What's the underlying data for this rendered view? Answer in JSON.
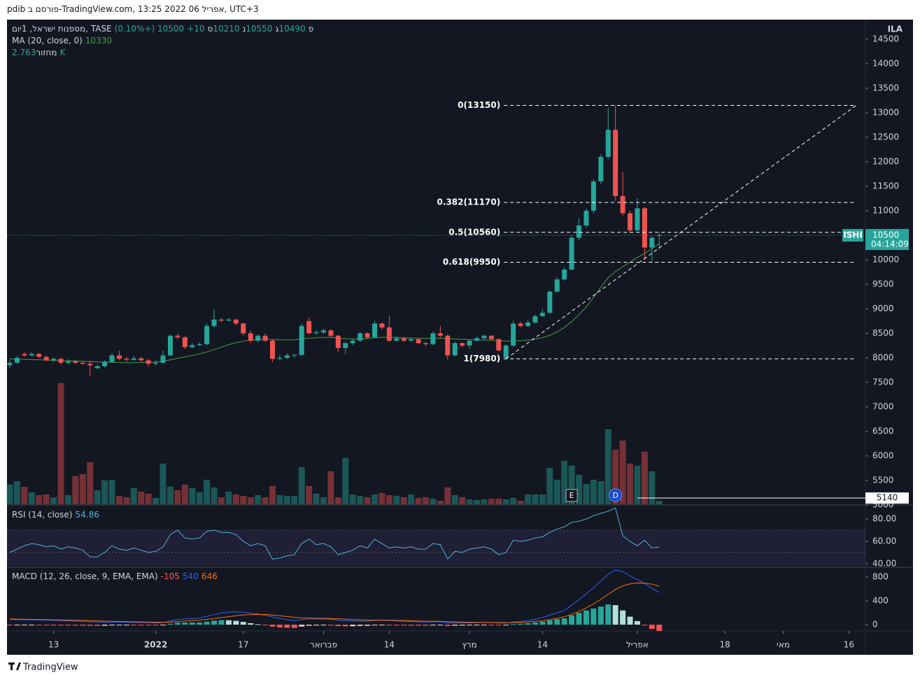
{
  "header": {
    "caption": "pdib פורסם ב-TradingView.com, 13:25 2022 אפריל 06, UTC+3"
  },
  "footer": {
    "brand": "TradingView"
  },
  "chart_data": {
    "type": "candlestick",
    "symbol_title": "מספנות ישראל, 1יום, TASE",
    "currency": "ILA",
    "ohlc_letters": [
      "פ",
      "ג",
      "נ",
      "ס"
    ],
    "change": "+10 (+0.10%)",
    "up_color": "#26a69a",
    "down_color": "#ef5350",
    "candles": [
      [
        7850,
        7960,
        7800,
        7900
      ],
      [
        7900,
        8040,
        7880,
        8000
      ],
      [
        8080,
        8120,
        8020,
        8050
      ],
      [
        8050,
        8120,
        8030,
        8080
      ],
      [
        8080,
        8100,
        7990,
        8020
      ],
      [
        8020,
        8050,
        7920,
        7950
      ],
      [
        7950,
        8010,
        7920,
        7980
      ],
      [
        7980,
        8000,
        7860,
        7900
      ],
      [
        7900,
        7970,
        7880,
        7930
      ],
      [
        7930,
        7950,
        7870,
        7900
      ],
      [
        7900,
        7920,
        7850,
        7880
      ],
      [
        7880,
        7940,
        7620,
        7850
      ],
      [
        7790,
        7860,
        7770,
        7830
      ],
      [
        7830,
        7950,
        7800,
        7920
      ],
      [
        7920,
        8100,
        7900,
        8050
      ],
      [
        8050,
        8150,
        7950,
        7980
      ],
      [
        7980,
        8020,
        7920,
        7960
      ],
      [
        7960,
        8040,
        7940,
        7990
      ],
      [
        7990,
        8020,
        7920,
        7950
      ],
      [
        7950,
        7980,
        7820,
        7880
      ],
      [
        7880,
        7960,
        7840,
        7900
      ],
      [
        7900,
        8150,
        7880,
        8050
      ],
      [
        8050,
        8480,
        8040,
        8450
      ],
      [
        8450,
        8490,
        8380,
        8420
      ],
      [
        8420,
        8440,
        8180,
        8220
      ],
      [
        8220,
        8300,
        8200,
        8260
      ],
      [
        8260,
        8320,
        8240,
        8280
      ],
      [
        8280,
        8700,
        8260,
        8650
      ],
      [
        8650,
        9000,
        8620,
        8780
      ],
      [
        8780,
        8820,
        8720,
        8760
      ],
      [
        8760,
        8820,
        8740,
        8780
      ],
      [
        8780,
        8800,
        8660,
        8700
      ],
      [
        8700,
        8720,
        8460,
        8500
      ],
      [
        8500,
        8560,
        8300,
        8350
      ],
      [
        8350,
        8480,
        8320,
        8450
      ],
      [
        8450,
        8500,
        8320,
        8350
      ],
      [
        8350,
        8380,
        7920,
        7980
      ],
      [
        7980,
        8060,
        7960,
        8000
      ],
      [
        8000,
        8090,
        7970,
        8050
      ],
      [
        8050,
        8080,
        8000,
        8060
      ],
      [
        8060,
        8700,
        8040,
        8650
      ],
      [
        8750,
        8820,
        8480,
        8500
      ],
      [
        8500,
        8560,
        8470,
        8520
      ],
      [
        8520,
        8600,
        8480,
        8560
      ],
      [
        8560,
        8580,
        8420,
        8450
      ],
      [
        8450,
        8470,
        8120,
        8200
      ],
      [
        8200,
        8330,
        8080,
        8300
      ],
      [
        8300,
        8380,
        8260,
        8350
      ],
      [
        8350,
        8530,
        8330,
        8500
      ],
      [
        8500,
        8520,
        8380,
        8420
      ],
      [
        8420,
        8760,
        8400,
        8700
      ],
      [
        8700,
        8720,
        8580,
        8620
      ],
      [
        8620,
        8860,
        8320,
        8350
      ],
      [
        8350,
        8440,
        8330,
        8400
      ],
      [
        8400,
        8420,
        8320,
        8350
      ],
      [
        8350,
        8400,
        8330,
        8380
      ],
      [
        8380,
        8400,
        8270,
        8300
      ],
      [
        8300,
        8320,
        8240,
        8280
      ],
      [
        8280,
        8540,
        8260,
        8500
      ],
      [
        8500,
        8650,
        8420,
        8450
      ],
      [
        8450,
        8480,
        7950,
        8050
      ],
      [
        8050,
        8330,
        8030,
        8300
      ],
      [
        8300,
        8320,
        8210,
        8250
      ],
      [
        8250,
        8380,
        8180,
        8350
      ],
      [
        8350,
        8440,
        8330,
        8400
      ],
      [
        8400,
        8480,
        8380,
        8450
      ],
      [
        8450,
        8460,
        8360,
        8380
      ],
      [
        8380,
        8400,
        8130,
        8150
      ],
      [
        8000,
        8280,
        7980,
        8250
      ],
      [
        8250,
        8760,
        8220,
        8700
      ],
      [
        8700,
        8740,
        8620,
        8650
      ],
      [
        8650,
        8780,
        8630,
        8720
      ],
      [
        8720,
        8880,
        8700,
        8850
      ],
      [
        8850,
        9000,
        8840,
        8920
      ],
      [
        8920,
        9380,
        8900,
        9350
      ],
      [
        9350,
        9650,
        9330,
        9600
      ],
      [
        9600,
        9850,
        9580,
        9800
      ],
      [
        9800,
        10500,
        9780,
        10450
      ],
      [
        10450,
        10850,
        10400,
        10700
      ],
      [
        10700,
        11050,
        10650,
        11000
      ],
      [
        11000,
        11650,
        10950,
        11600
      ],
      [
        11600,
        12150,
        11550,
        12100
      ],
      [
        12100,
        13100,
        12050,
        12650
      ],
      [
        12650,
        13150,
        11200,
        11300
      ],
      [
        11300,
        11800,
        10900,
        10950
      ],
      [
        10950,
        11000,
        10550,
        10600
      ],
      [
        10600,
        11250,
        10580,
        11050
      ],
      [
        11050,
        11080,
        10000,
        10250
      ],
      [
        10250,
        10480,
        9950,
        10450
      ],
      [
        10490,
        10550,
        10210,
        10500
      ]
    ],
    "volume": {
      "name": "מחזור",
      "last_label": "2.763K",
      "values": [
        15400,
        18150,
        13750,
        9350,
        7150,
        7700,
        5500,
        95150,
        7150,
        22000,
        23650,
        33000,
        11000,
        18700,
        19250,
        6600,
        5500,
        12650,
        9900,
        8250,
        4950,
        31900,
        13750,
        11000,
        15400,
        12650,
        9350,
        19250,
        13200,
        5500,
        9900,
        7700,
        6600,
        5500,
        7150,
        5500,
        14300,
        7150,
        6600,
        6600,
        29150,
        14300,
        8250,
        5500,
        25850,
        5500,
        36300,
        7700,
        6600,
        5500,
        7700,
        8800,
        7150,
        6600,
        5500,
        7700,
        4950,
        5500,
        4400,
        2750,
        13200,
        7150,
        5500,
        3850,
        3300,
        3850,
        4400,
        4400,
        3850,
        4950,
        2750,
        7700,
        7700,
        7700,
        28600,
        19250,
        34100,
        30250,
        23100,
        15950,
        19250,
        18150,
        58850,
        42900,
        50050,
        31900,
        30250,
        41250,
        25850,
        2763
      ]
    },
    "ma": {
      "name": "MA (20, close, 0)",
      "color": "#43a047",
      "values": [
        7980,
        7975,
        7970,
        7965,
        7960,
        7955,
        7950,
        7945,
        7940,
        7935,
        7930,
        7925,
        7920,
        7915,
        7910,
        7905,
        7900,
        7900,
        7905,
        7910,
        7915,
        7930,
        7960,
        7990,
        8020,
        8050,
        8080,
        8120,
        8170,
        8220,
        8270,
        8310,
        8340,
        8360,
        8370,
        8380,
        8375,
        8370,
        8365,
        8370,
        8390,
        8400,
        8410,
        8415,
        8420,
        8400,
        8390,
        8385,
        8390,
        8395,
        8410,
        8420,
        8420,
        8415,
        8410,
        8405,
        8400,
        8395,
        8400,
        8400,
        8390,
        8385,
        8380,
        8375,
        8370,
        8365,
        8360,
        8350,
        8340,
        8345,
        8350,
        8360,
        8380,
        8410,
        8460,
        8530,
        8620,
        8740,
        8880,
        9040,
        9230,
        9440,
        9640,
        9760,
        9860,
        9950,
        10050,
        10130,
        10230,
        10330
      ]
    },
    "fib_levels": [
      {
        "value": 13150,
        "label": "0(13150)"
      },
      {
        "value": 11170,
        "label": "0.382(11170)"
      },
      {
        "value": 10560,
        "label": "0.5(10560)"
      },
      {
        "value": 9950,
        "label": "0.618(9950)"
      },
      {
        "value": 7980,
        "label": "1(7980)"
      }
    ],
    "trend_line": {
      "x": [
        68,
        116
      ],
      "y": [
        7980,
        13150
      ]
    },
    "hline": {
      "value": 5140,
      "x": 86
    },
    "events": [
      {
        "x": 77,
        "label": "E"
      },
      {
        "x": 83,
        "label": "D"
      }
    ],
    "price_label": {
      "symbol": "ISHI",
      "countdown": "04:14:09"
    },
    "ylim": [
      5014,
      14871
    ],
    "yticks": [
      5000,
      5500,
      6000,
      6500,
      7000,
      7500,
      8000,
      8500,
      9000,
      9500,
      10000,
      10500,
      11000,
      11500,
      12000,
      12500,
      13000,
      13500,
      14000,
      14500
    ],
    "xticks": [
      {
        "value": 6,
        "label": "13"
      },
      {
        "value": 20,
        "label": "2022"
      },
      {
        "value": 32,
        "label": "17"
      },
      {
        "value": 43,
        "label": "פברואר"
      },
      {
        "value": 52,
        "label": "14"
      },
      {
        "value": 63,
        "label": "מרץ"
      },
      {
        "value": 73,
        "label": "14"
      },
      {
        "value": 86,
        "label": "אפריל"
      },
      {
        "value": 98,
        "label": "18"
      },
      {
        "value": 106,
        "label": "מאי"
      },
      {
        "value": 115,
        "label": "16"
      }
    ],
    "rsi": {
      "name": "RSI (14, close)",
      "color": "#4fb3d9",
      "ylim": [
        38,
        92
      ],
      "band": [
        30,
        70
      ],
      "mid": 50,
      "yticks": [
        {
          "value": 40,
          "label": "40.00"
        },
        {
          "value": 60,
          "label": "60.00"
        },
        {
          "value": 80,
          "label": "80.00"
        }
      ],
      "values": [
        50,
        53,
        56,
        58,
        57,
        55,
        56,
        53,
        55,
        54,
        52,
        46,
        46,
        50,
        56,
        53,
        52,
        54,
        52,
        50,
        51,
        55,
        66,
        70,
        63,
        62,
        63,
        69,
        70,
        68,
        68,
        66,
        60,
        56,
        58,
        56,
        44,
        45,
        47,
        48,
        58,
        62,
        57,
        58,
        55,
        48,
        50,
        52,
        56,
        54,
        62,
        58,
        54,
        55,
        54,
        55,
        53,
        53,
        58,
        57,
        44,
        51,
        50,
        53,
        54,
        55,
        53,
        48,
        50,
        61,
        60,
        61,
        63,
        64,
        68,
        71,
        73,
        77,
        78,
        80,
        83,
        85,
        87,
        90,
        65,
        60,
        56,
        61,
        54,
        54.86
      ]
    },
    "macd": {
      "name": "MACD (12, 26, close, 9, EMA, EMA)",
      "ylim": [
        -94,
        941
      ],
      "yticks": [
        0,
        400,
        800
      ],
      "macd_color": "#2962ff",
      "signal_color": "#ff6d00",
      "hist": [
        -10,
        -9,
        -8,
        -7,
        -7,
        -9,
        -11,
        -12,
        -13,
        -14,
        -15,
        -17,
        -18,
        -17,
        -13,
        -11,
        -10,
        -10,
        -10,
        -11,
        -11,
        -6,
        16,
        33,
        35,
        37,
        39,
        52,
        68,
        76,
        74,
        65,
        47,
        25,
        8,
        -10,
        -32,
        -45,
        -52,
        -54,
        -31,
        -17,
        -13,
        -11,
        -13,
        -23,
        -27,
        -26,
        -20,
        -18,
        -5,
        -2,
        -7,
        -10,
        -13,
        -14,
        -15,
        -16,
        -9,
        -6,
        -20,
        -16,
        -14,
        -10,
        -5,
        -2,
        -2,
        -7,
        -5,
        10,
        16,
        25,
        36,
        53,
        75,
        92,
        106,
        157,
        198,
        239,
        271,
        305,
        340,
        328,
        239,
        135,
        60,
        -8,
        -70,
        -105
      ],
      "macd": [
        85,
        84,
        83,
        82,
        80,
        76,
        72,
        68,
        64,
        60,
        56,
        50,
        45,
        42,
        43,
        42,
        40,
        38,
        36,
        33,
        30,
        34,
        60,
        85,
        95,
        105,
        115,
        140,
        170,
        195,
        210,
        215,
        210,
        195,
        180,
        160,
        130,
        105,
        85,
        70,
        85,
        95,
        95,
        95,
        90,
        75,
        65,
        60,
        62,
        60,
        72,
        75,
        68,
        62,
        56,
        52,
        47,
        43,
        48,
        50,
        30,
        30,
        28,
        30,
        33,
        36,
        35,
        28,
        28,
        45,
        55,
        70,
        90,
        120,
        160,
        200,
        240,
        330,
        420,
        520,
        620,
        730,
        850,
        920,
        890,
        820,
        760,
        690,
        610,
        540
      ],
      "signal": [
        95,
        93,
        91,
        89,
        87,
        85,
        83,
        80,
        77,
        74,
        71,
        67,
        63,
        59,
        56,
        53,
        50,
        48,
        46,
        44,
        41,
        40,
        44,
        52,
        60,
        68,
        76,
        88,
        102,
        119,
        136,
        150,
        163,
        170,
        172,
        170,
        162,
        150,
        137,
        124,
        116,
        112,
        108,
        106,
        103,
        98,
        92,
        86,
        82,
        78,
        77,
        77,
        75,
        72,
        69,
        66,
        62,
        59,
        57,
        56,
        50,
        46,
        42,
        40,
        38,
        38,
        37,
        35,
        33,
        35,
        39,
        45,
        54,
        67,
        85,
        108,
        134,
        173,
        222,
        281,
        349,
        425,
        510,
        592,
        651,
        685,
        700,
        698,
        680,
        646
      ]
    }
  }
}
